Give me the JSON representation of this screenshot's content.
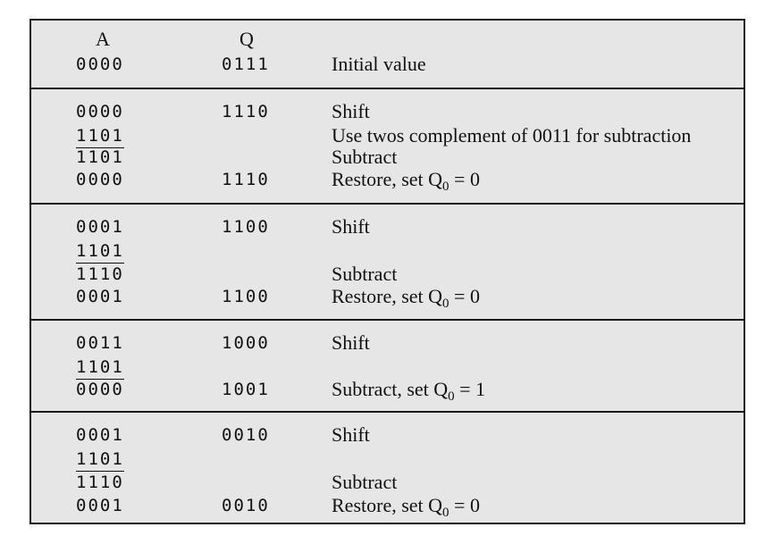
{
  "headers": {
    "a": "A",
    "q": "Q"
  },
  "blocks": [
    {
      "rows": [
        {
          "a": "0000",
          "q": "0111",
          "desc": "Initial value"
        }
      ]
    },
    {
      "rows": [
        {
          "a": "0000",
          "q": "1110",
          "desc": "Shift"
        },
        {
          "a": "1101",
          "q": "",
          "desc": "Use twos complement of 0011 for subtraction",
          "underline": true
        },
        {
          "a": "1101",
          "q": "",
          "desc": "Subtract"
        },
        {
          "a": "0000",
          "q": "1110",
          "desc": "Restore, set Q",
          "sub": "0",
          "tail": " = 0"
        }
      ]
    },
    {
      "rows": [
        {
          "a": "0001",
          "q": "1100",
          "desc": "Shift"
        },
        {
          "a": "1101",
          "q": "",
          "desc": "",
          "underline": true
        },
        {
          "a": "1110",
          "q": "",
          "desc": "Subtract"
        },
        {
          "a": "0001",
          "q": "1100",
          "desc": "Restore, set Q",
          "sub": "0",
          "tail": " = 0"
        }
      ]
    },
    {
      "rows": [
        {
          "a": "0011",
          "q": "1000",
          "desc": "Shift"
        },
        {
          "a": "1101",
          "q": "",
          "desc": "",
          "underline": true
        },
        {
          "a": "0000",
          "q": "1001",
          "desc": "Subtract, set Q",
          "sub": "0",
          "tail": " = 1"
        }
      ]
    },
    {
      "rows": [
        {
          "a": "0001",
          "q": "0010",
          "desc": "Shift"
        },
        {
          "a": "1101",
          "q": "",
          "desc": "",
          "underline": true
        },
        {
          "a": "1110",
          "q": "",
          "desc": "Subtract"
        },
        {
          "a": "0001",
          "q": "0010",
          "desc": "Restore, set Q",
          "sub": "0",
          "tail": " = 0"
        }
      ]
    }
  ]
}
